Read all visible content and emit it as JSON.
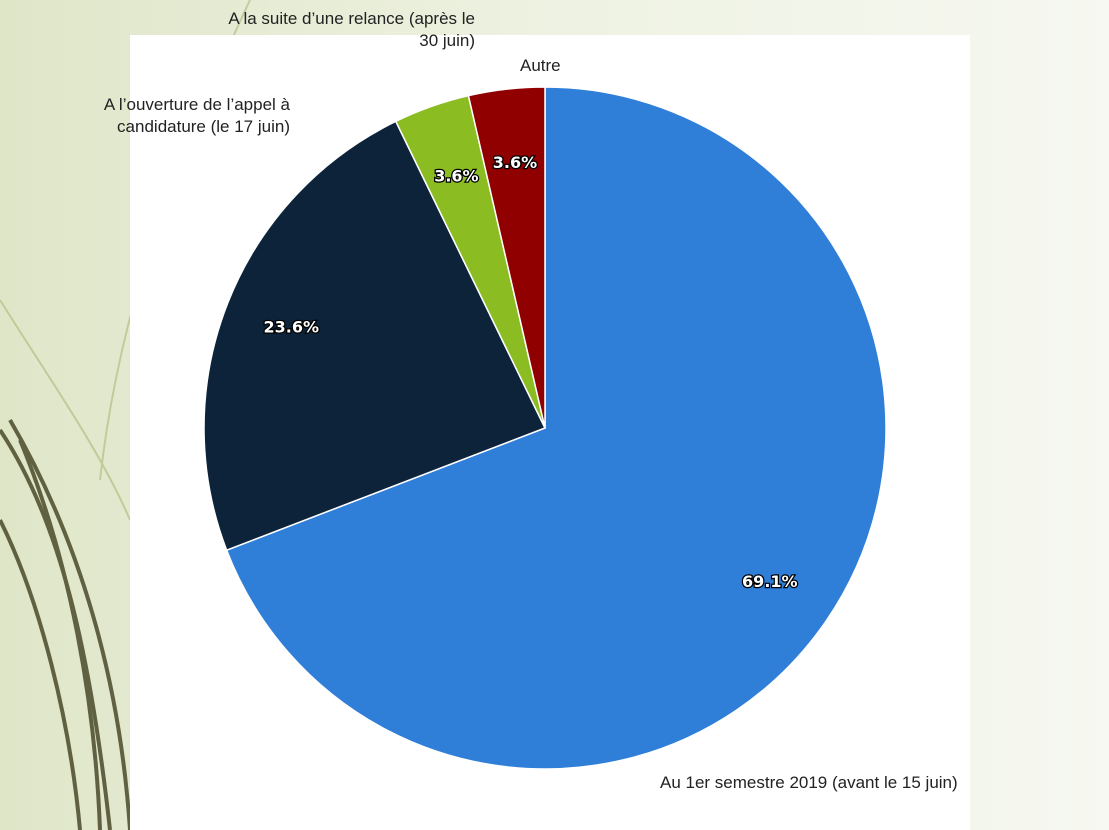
{
  "chart_data": {
    "type": "pie",
    "categories": [
      "Au 1er semestre 2019 (avant le 15 juin)",
      "A l’ouverture de l’appel à candidature (le 17 juin)",
      "A la suite d’une relance (après le 30 juin)",
      "Autre"
    ],
    "values": [
      69.1,
      23.6,
      3.6,
      3.6
    ],
    "value_labels": [
      "69.1%",
      "23.6%",
      "3.6%",
      "3.6%"
    ],
    "colors": [
      "#2f7ed8",
      "#0d233a",
      "#8bbc21",
      "#910000"
    ]
  }
}
